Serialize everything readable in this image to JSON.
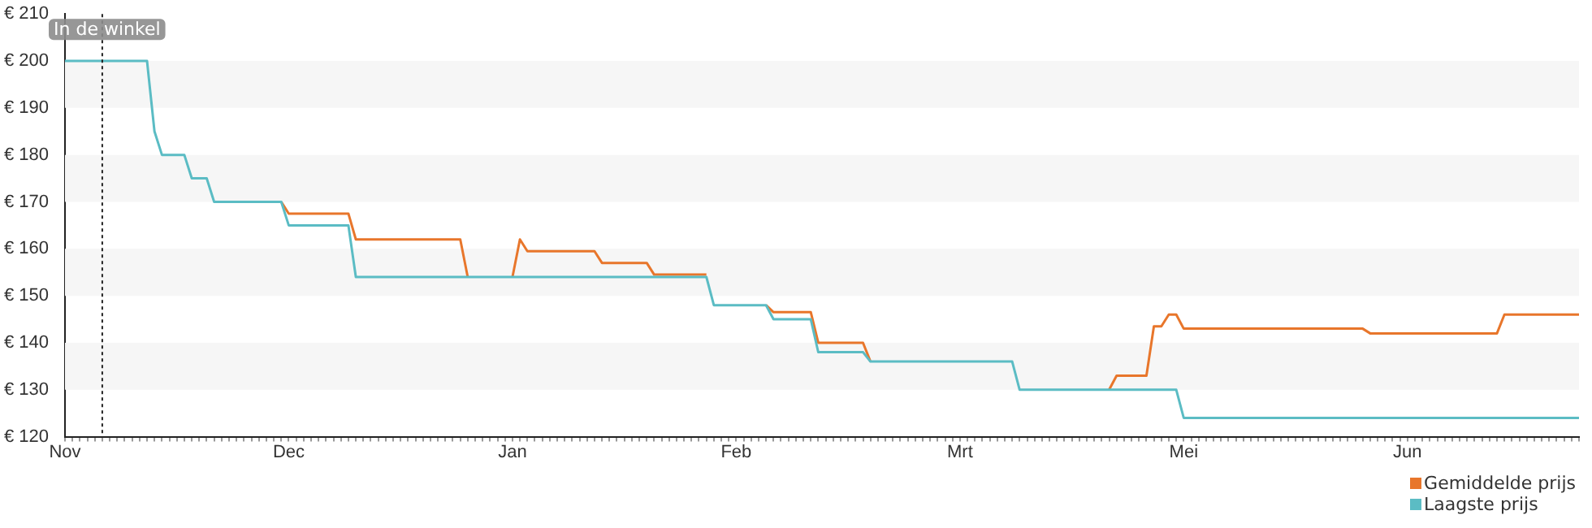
{
  "chart_data": {
    "type": "line",
    "categories": [
      "Nov",
      null,
      null,
      null,
      null,
      null,
      null,
      null,
      null,
      null,
      null,
      null,
      null,
      null,
      null,
      null,
      null,
      null,
      null,
      null,
      null,
      null,
      null,
      null,
      null,
      null,
      null,
      null,
      null,
      null,
      "Dec",
      null,
      null,
      null,
      null,
      null,
      null,
      null,
      null,
      null,
      null,
      null,
      null,
      null,
      null,
      null,
      null,
      null,
      null,
      null,
      null,
      null,
      null,
      null,
      null,
      null,
      null,
      null,
      null,
      null,
      "Jan",
      null,
      null,
      null,
      null,
      null,
      null,
      null,
      null,
      null,
      null,
      null,
      null,
      null,
      null,
      null,
      null,
      null,
      null,
      null,
      null,
      null,
      null,
      null,
      null,
      null,
      null,
      null,
      null,
      null,
      "Feb",
      null,
      null,
      null,
      null,
      null,
      null,
      null,
      null,
      null,
      null,
      null,
      null,
      null,
      null,
      null,
      null,
      null,
      null,
      null,
      null,
      null,
      null,
      null,
      null,
      null,
      null,
      null,
      null,
      null,
      "Mrt",
      null,
      null,
      null,
      null,
      null,
      null,
      null,
      null,
      null,
      null,
      null,
      null,
      null,
      null,
      null,
      null,
      null,
      null,
      null,
      null,
      null,
      null,
      null,
      null,
      null,
      null,
      null,
      null,
      null,
      "Mei",
      null,
      null,
      null,
      null,
      null,
      null,
      null,
      null,
      null,
      null,
      null,
      null,
      null,
      null,
      null,
      null,
      null,
      null,
      null,
      null,
      null,
      null,
      null,
      null,
      null,
      null,
      null,
      null,
      null,
      "Jun",
      null,
      null,
      null,
      null,
      null,
      null,
      null,
      null,
      null,
      null,
      null,
      null,
      null,
      null,
      null,
      null,
      null,
      null,
      null,
      null,
      null,
      null,
      null
    ],
    "ylim": [
      120,
      210
    ],
    "yticks": [
      {
        "value": 120,
        "label": "€ 120"
      },
      {
        "value": 130,
        "label": "€ 130"
      },
      {
        "value": 140,
        "label": "€ 140"
      },
      {
        "value": 150,
        "label": "€ 150"
      },
      {
        "value": 160,
        "label": "€ 160"
      },
      {
        "value": 170,
        "label": "€ 170"
      },
      {
        "value": 180,
        "label": "€ 180"
      },
      {
        "value": 190,
        "label": "€ 190"
      },
      {
        "value": 200,
        "label": "€ 200"
      },
      {
        "value": 210,
        "label": "€ 210"
      }
    ],
    "annotations": [
      "In de winkel"
    ],
    "legend": "bottom right",
    "marker": "none",
    "series": [
      {
        "name": "Gemiddelde prijs",
        "color": "#e8762b",
        "values": [
          null,
          null,
          null,
          null,
          null,
          null,
          null,
          null,
          null,
          null,
          null,
          null,
          null,
          null,
          null,
          null,
          null,
          null,
          null,
          null,
          null,
          null,
          null,
          null,
          null,
          null,
          null,
          null,
          null,
          170,
          167.5,
          167.5,
          167.5,
          167.5,
          167.5,
          167.5,
          167.5,
          167.5,
          167.5,
          162,
          162,
          162,
          162,
          162,
          162,
          162,
          162,
          162,
          162,
          162,
          162,
          162,
          162,
          162,
          154,
          null,
          null,
          null,
          null,
          null,
          154,
          162,
          159.5,
          159.5,
          159.5,
          159.5,
          159.5,
          159.5,
          159.5,
          159.5,
          159.5,
          159.5,
          157,
          157,
          157,
          157,
          157,
          157,
          157,
          154.5,
          154.5,
          154.5,
          154.5,
          154.5,
          154.5,
          154.5,
          154.5,
          null,
          null,
          null,
          null,
          null,
          null,
          null,
          148,
          146.5,
          146.5,
          146.5,
          146.5,
          146.5,
          146.5,
          140,
          140,
          140,
          140,
          140,
          140,
          140,
          136,
          null,
          null,
          null,
          null,
          null,
          null,
          null,
          null,
          null,
          null,
          null,
          null,
          null,
          null,
          null,
          null,
          null,
          null,
          null,
          null,
          null,
          null,
          null,
          null,
          null,
          null,
          null,
          null,
          null,
          null,
          null,
          130,
          133,
          133,
          133,
          133,
          133,
          143.5,
          143.5,
          146,
          146,
          143,
          143,
          143,
          143,
          143,
          143,
          143,
          143,
          143,
          143,
          143,
          143,
          143,
          143,
          143,
          143,
          143,
          143,
          143,
          143,
          143,
          143,
          143,
          143,
          143,
          142,
          142,
          142,
          142,
          142,
          142,
          142,
          142,
          142,
          142,
          142,
          142,
          142,
          142,
          142,
          142,
          142,
          142,
          146,
          146,
          146,
          146,
          146,
          146,
          146,
          146,
          146,
          146,
          146
        ]
      },
      {
        "name": "Laagste prijs",
        "color": "#5bbcc4",
        "values": [
          200,
          200,
          200,
          200,
          200,
          200,
          200,
          200,
          200,
          200,
          200,
          200,
          185,
          180,
          180,
          180,
          180,
          175,
          175,
          175,
          170,
          170,
          170,
          170,
          170,
          170,
          170,
          170,
          170,
          170,
          165,
          165,
          165,
          165,
          165,
          165,
          165,
          165,
          165,
          154,
          154,
          154,
          154,
          154,
          154,
          154,
          154,
          154,
          154,
          154,
          154,
          154,
          154,
          154,
          154,
          154,
          154,
          154,
          154,
          154,
          154,
          154,
          154,
          154,
          154,
          154,
          154,
          154,
          154,
          154,
          154,
          154,
          154,
          154,
          154,
          154,
          154,
          154,
          154,
          154,
          154,
          154,
          154,
          154,
          154,
          154,
          154,
          148,
          148,
          148,
          148,
          148,
          148,
          148,
          148,
          145,
          145,
          145,
          145,
          145,
          145,
          138,
          138,
          138,
          138,
          138,
          138,
          138,
          136,
          136,
          136,
          136,
          136,
          136,
          136,
          136,
          136,
          136,
          136,
          136,
          136,
          136,
          136,
          136,
          136,
          136,
          136,
          136,
          130,
          130,
          130,
          130,
          130,
          130,
          130,
          130,
          130,
          130,
          130,
          130,
          130,
          130,
          130,
          130,
          130,
          130,
          130,
          130,
          130,
          130,
          124,
          124,
          124,
          124,
          124,
          124,
          124,
          124,
          124,
          124,
          124,
          124,
          124,
          124,
          124,
          124,
          124,
          124,
          124,
          124,
          124,
          124,
          124,
          124,
          124,
          124,
          124,
          124,
          124,
          124,
          124,
          124,
          124,
          124,
          124,
          124,
          124,
          124,
          124,
          124,
          124,
          124,
          124,
          124,
          124,
          124,
          124,
          124,
          124,
          124,
          124,
          124,
          124,
          124
        ]
      }
    ]
  }
}
